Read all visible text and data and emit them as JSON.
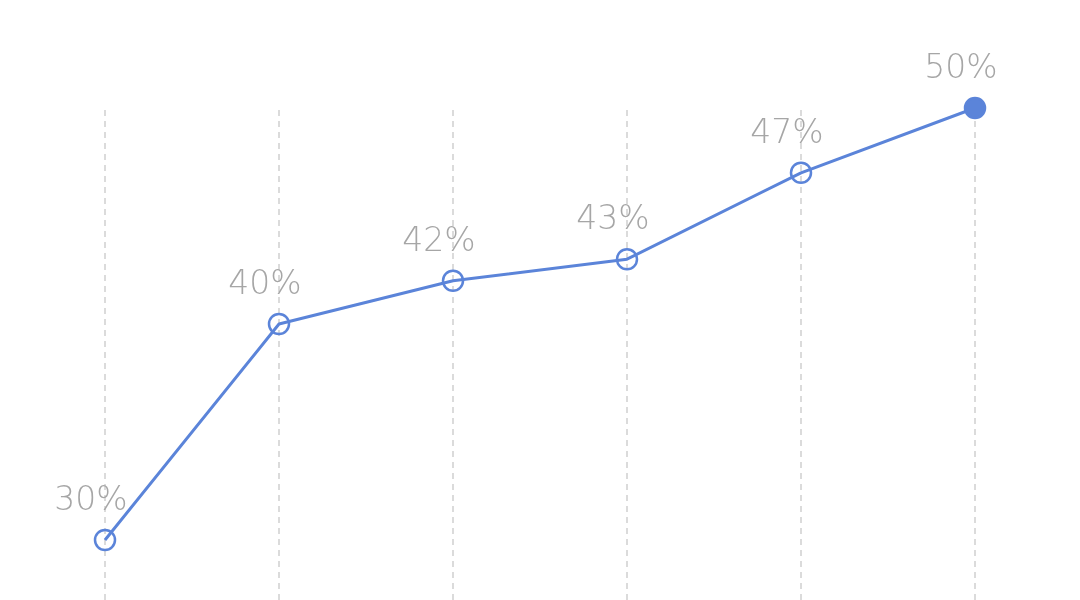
{
  "chart_data": {
    "type": "line",
    "categories": [
      null,
      null,
      null,
      null,
      null,
      null,
      null
    ],
    "series": [
      {
        "color": "#5b84d9",
        "values": [
          null,
          30,
          40,
          42,
          43,
          47,
          50
        ],
        "value_labels": [
          null,
          "30%",
          "40%",
          "42%",
          "43%",
          "47%",
          "50%"
        ]
      }
    ],
    "grid": "x",
    "marker": "circle"
  }
}
